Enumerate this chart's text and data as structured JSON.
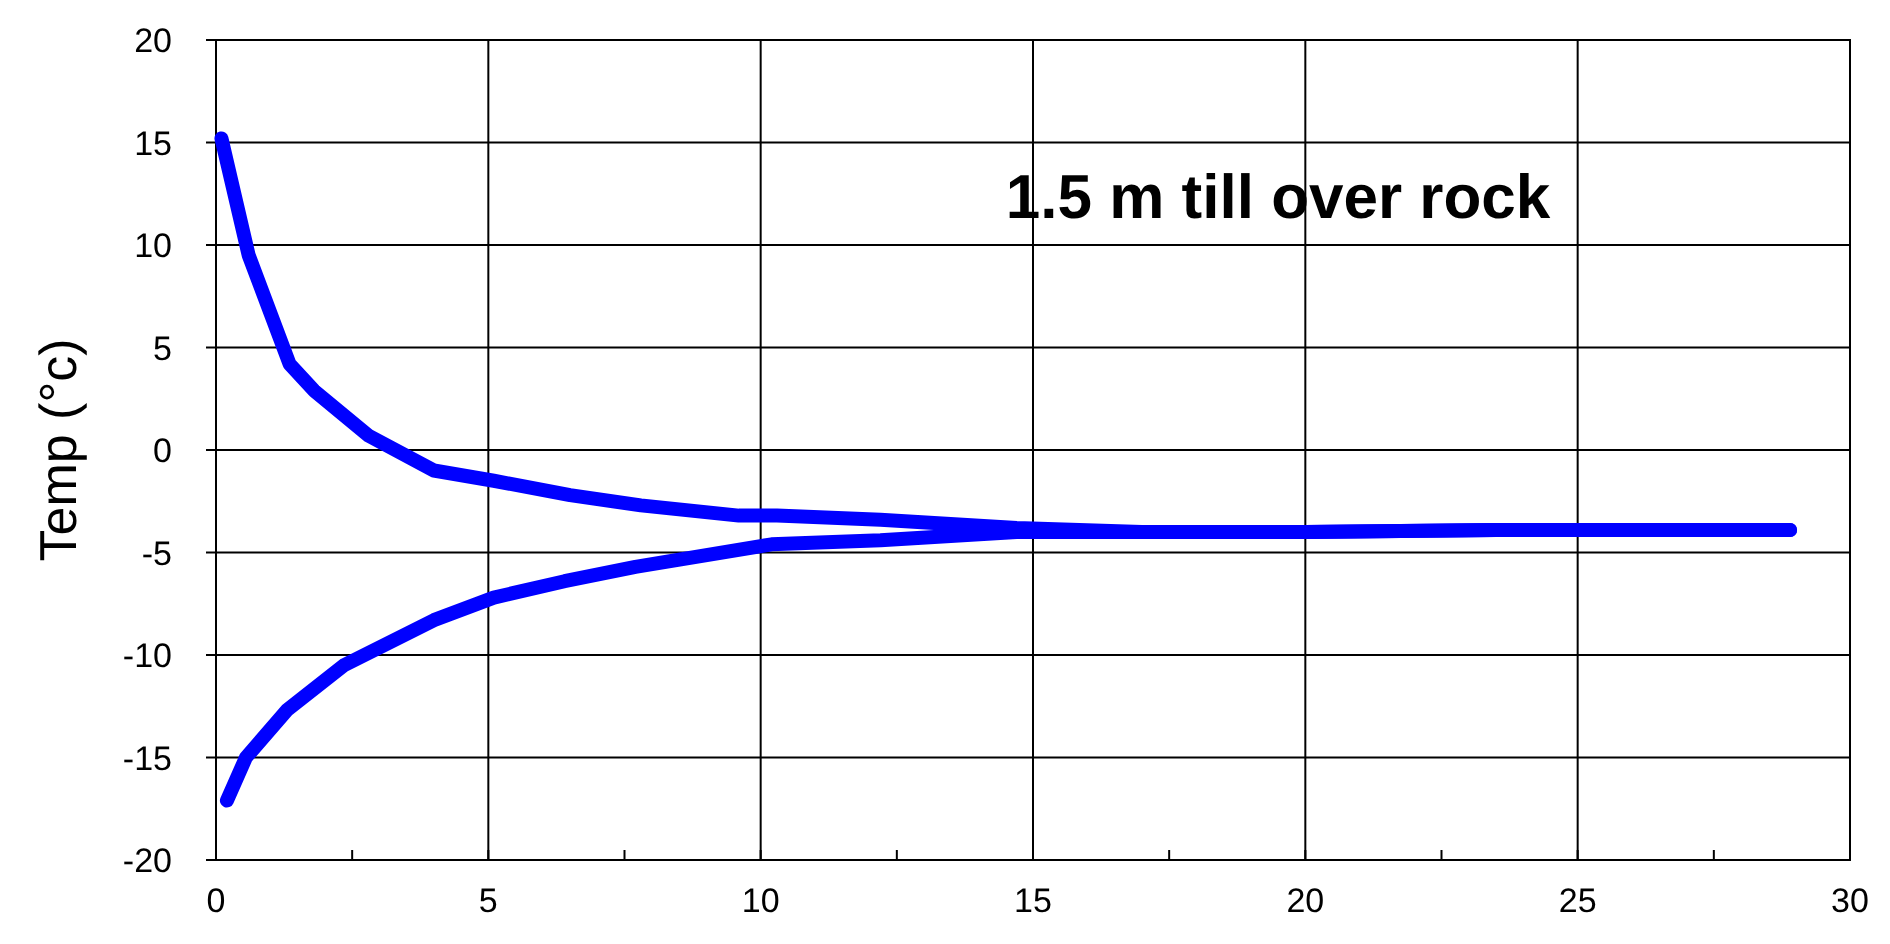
{
  "chart_data": {
    "type": "line",
    "ylabel": "Temp (°c)",
    "annotations": [
      "1.5 m till over rock"
    ],
    "xlim": [
      0,
      30
    ],
    "ylim": [
      -20,
      20
    ],
    "xticks": [
      0,
      {
        "value": 2.5,
        "label": null
      },
      5,
      {
        "value": 7.5,
        "label": null
      },
      10,
      {
        "value": 12.5,
        "label": null
      },
      15,
      {
        "value": 17.5,
        "label": null
      },
      20,
      {
        "value": 22.5,
        "label": null
      },
      25,
      {
        "value": 27.5,
        "label": null
      },
      30
    ],
    "yticks": [
      -20,
      -15,
      -10,
      -5,
      0,
      5,
      10,
      15,
      20
    ],
    "grid": true,
    "marker": "none",
    "line_style": "solid",
    "series": [
      {
        "color": "#0000ff",
        "x": [
          0.1,
          0.6,
          1.35,
          1.8,
          2.8,
          4.0,
          5.1,
          6.5,
          7.8,
          9.6,
          10.3,
          12.2,
          14.7,
          17,
          20,
          23.5,
          26,
          28.9
        ],
        "values": [
          15.2,
          9.5,
          4.2,
          2.9,
          0.7,
          -1.0,
          -1.5,
          -2.2,
          -2.7,
          -3.2,
          -3.2,
          -3.4,
          -3.8,
          -4.0,
          -4.0,
          -3.9,
          -3.9,
          -3.9
        ]
      },
      {
        "color": "#0000ff",
        "x": [
          0.2,
          0.55,
          1.3,
          2.35,
          4.0,
          5.1,
          6.4,
          7.7,
          10.2,
          12.2,
          14.7,
          17,
          20,
          23.5,
          26,
          28.9
        ],
        "values": [
          -17.1,
          -15,
          -12.7,
          -10.5,
          -8.3,
          -7.2,
          -6.4,
          -5.7,
          -4.6,
          -4.4,
          -4.0,
          -4.0,
          -4.0,
          -3.9,
          -3.9,
          -3.9
        ]
      }
    ]
  }
}
